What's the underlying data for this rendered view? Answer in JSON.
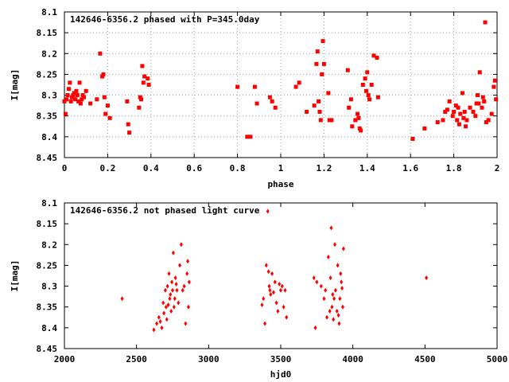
{
  "chart_data": [
    {
      "type": "scatter",
      "title": "142646-6356.2 phased with P=345.0day",
      "xlabel": "phase",
      "ylabel": "I[mag]",
      "xlim": [
        0,
        2
      ],
      "ylim": [
        8.1,
        8.45
      ],
      "y_inverted": true,
      "grid": true,
      "marker": "square",
      "color": "#ff0000",
      "x_ticks": [
        "0",
        "0.2",
        "0.4",
        "0.6",
        "0.8",
        "1",
        "1.2",
        "1.4",
        "1.6",
        "1.8",
        "2"
      ],
      "y_ticks": [
        "8.1",
        "8.15",
        "8.2",
        "8.25",
        "8.3",
        "8.35",
        "8.4",
        "8.45"
      ],
      "x": [
        0.0,
        0.005,
        0.01,
        0.015,
        0.02,
        0.025,
        0.03,
        0.035,
        0.04,
        0.045,
        0.05,
        0.055,
        0.06,
        0.065,
        0.07,
        0.075,
        0.08,
        0.085,
        0.09,
        0.1,
        0.12,
        0.15,
        0.165,
        0.175,
        0.18,
        0.185,
        0.19,
        0.2,
        0.21,
        0.29,
        0.295,
        0.3,
        0.345,
        0.35,
        0.355,
        0.36,
        0.365,
        0.37,
        0.385,
        0.39,
        0.8,
        0.845,
        0.86,
        0.88,
        0.89,
        0.95,
        0.96,
        0.975,
        1.07,
        1.085,
        1.12,
        1.155,
        1.165,
        1.17,
        1.175,
        1.18,
        1.185,
        1.19,
        1.195,
        1.2,
        1.22,
        1.225,
        1.235,
        1.31,
        1.315,
        1.325,
        1.33,
        1.345,
        1.355,
        1.36,
        1.365,
        1.37,
        1.38,
        1.39,
        1.395,
        1.4,
        1.405,
        1.41,
        1.42,
        1.43,
        1.445,
        1.45,
        1.61,
        1.665,
        1.725,
        1.75,
        1.76,
        1.77,
        1.78,
        1.795,
        1.8,
        1.81,
        1.815,
        1.82,
        1.825,
        1.83,
        1.84,
        1.845,
        1.85,
        1.855,
        1.86,
        1.875,
        1.89,
        1.9,
        1.905,
        1.91,
        1.915,
        1.92,
        1.93,
        1.935,
        1.94,
        1.945,
        1.95,
        1.96,
        1.975,
        1.985,
        1.99,
        1.995
      ],
      "y": [
        8.315,
        8.345,
        8.31,
        8.3,
        8.285,
        8.27,
        8.315,
        8.305,
        8.3,
        8.295,
        8.31,
        8.29,
        8.3,
        8.315,
        8.27,
        8.32,
        8.31,
        8.3,
        8.305,
        8.29,
        8.32,
        8.31,
        8.2,
        8.255,
        8.25,
        8.305,
        8.345,
        8.325,
        8.355,
        8.315,
        8.37,
        8.39,
        8.33,
        8.305,
        8.31,
        8.23,
        8.27,
        8.255,
        8.26,
        8.275,
        8.28,
        8.4,
        8.4,
        8.28,
        8.32,
        8.305,
        8.315,
        8.33,
        8.28,
        8.27,
        8.34,
        8.325,
        8.225,
        8.195,
        8.315,
        8.34,
        8.36,
        8.25,
        8.17,
        8.225,
        8.295,
        8.36,
        8.36,
        8.24,
        8.33,
        8.31,
        8.375,
        8.36,
        8.345,
        8.355,
        8.38,
        8.385,
        8.275,
        8.26,
        8.29,
        8.245,
        8.3,
        8.31,
        8.275,
        8.205,
        8.21,
        8.305,
        8.405,
        8.38,
        8.365,
        8.36,
        8.34,
        8.335,
        8.315,
        8.35,
        8.34,
        8.325,
        8.36,
        8.33,
        8.37,
        8.345,
        8.295,
        8.355,
        8.34,
        8.375,
        8.36,
        8.33,
        8.34,
        8.35,
        8.32,
        8.3,
        8.32,
        8.245,
        8.33,
        8.305,
        8.315,
        8.125,
        8.365,
        8.36,
        8.345,
        8.28,
        8.265,
        8.31
      ]
    },
    {
      "type": "scatter",
      "title": "142646-6356.2 not phased light curve",
      "xlabel": "hjd0",
      "ylabel": "I[mag]",
      "xlim": [
        2000,
        5000
      ],
      "ylim": [
        8.1,
        8.45
      ],
      "y_inverted": true,
      "grid": false,
      "marker": "diamond",
      "color": "#ff0000",
      "x_ticks": [
        "2000",
        "2500",
        "3000",
        "3500",
        "4000",
        "4500",
        "5000"
      ],
      "y_ticks": [
        "8.1",
        "8.15",
        "8.2",
        "8.25",
        "8.3",
        "8.35",
        "8.4",
        "8.45"
      ],
      "x": [
        2400,
        2620,
        2640,
        2655,
        2665,
        2675,
        2685,
        2690,
        2700,
        2705,
        2710,
        2715,
        2720,
        2725,
        2730,
        2735,
        2740,
        2745,
        2750,
        2755,
        2760,
        2765,
        2770,
        2775,
        2780,
        2790,
        2800,
        2810,
        2820,
        2830,
        2840,
        2850,
        2855,
        2860,
        2865,
        3370,
        3380,
        3390,
        3400,
        3410,
        3415,
        3420,
        3425,
        3430,
        3440,
        3450,
        3460,
        3470,
        3480,
        3490,
        3500,
        3510,
        3520,
        3530,
        3540,
        3730,
        3740,
        3750,
        3780,
        3800,
        3810,
        3820,
        3830,
        3840,
        3845,
        3850,
        3855,
        3860,
        3865,
        3870,
        3875,
        3880,
        3890,
        3895,
        3900,
        3905,
        3910,
        3915,
        3920,
        3925,
        3930,
        3935,
        4510
      ],
      "y": [
        8.33,
        8.405,
        8.39,
        8.375,
        8.385,
        8.4,
        8.34,
        8.365,
        8.31,
        8.35,
        8.38,
        8.3,
        8.345,
        8.27,
        8.33,
        8.32,
        8.36,
        8.29,
        8.31,
        8.22,
        8.35,
        8.33,
        8.28,
        8.295,
        8.31,
        8.34,
        8.25,
        8.2,
        8.31,
        8.3,
        8.39,
        8.27,
        8.24,
        8.35,
        8.29,
        8.345,
        8.33,
        8.39,
        8.25,
        8.12,
        8.265,
        8.3,
        8.31,
        8.32,
        8.27,
        8.315,
        8.29,
        8.34,
        8.36,
        8.295,
        8.31,
        8.3,
        8.35,
        8.31,
        8.375,
        8.28,
        8.4,
        8.29,
        8.3,
        8.33,
        8.31,
        8.375,
        8.23,
        8.36,
        8.28,
        8.16,
        8.35,
        8.32,
        8.38,
        8.33,
        8.2,
        8.31,
        8.36,
        8.25,
        8.37,
        8.39,
        8.33,
        8.27,
        8.29,
        8.305,
        8.35,
        8.21,
        8.28
      ]
    }
  ]
}
